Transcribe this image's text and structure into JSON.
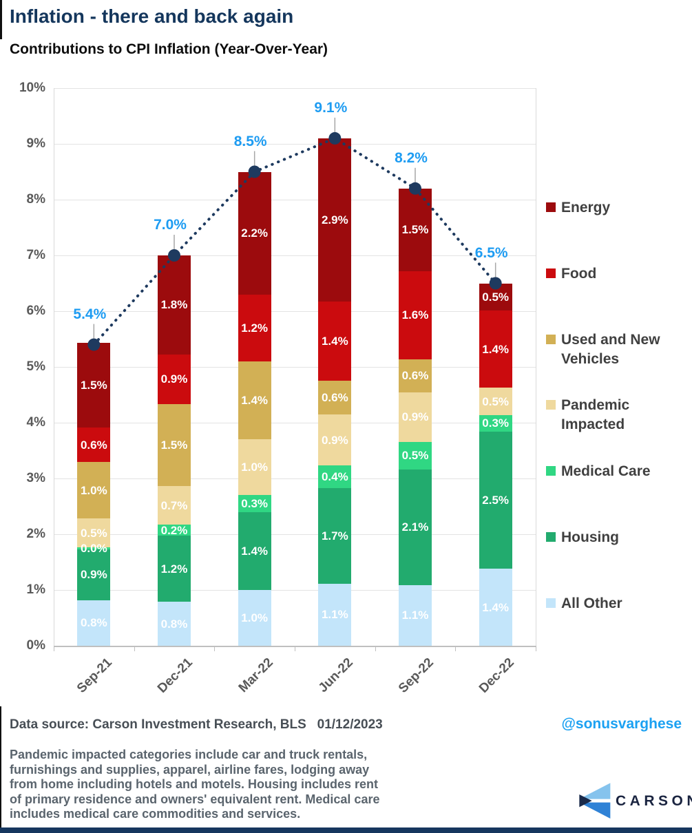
{
  "page": {
    "title": "Inflation - there and back again",
    "subtitle": "Contributions to CPI Inflation (Year-Over-Year)"
  },
  "footer": {
    "data_source": "Data source: Carson Investment Research, BLS   01/12/2023",
    "handle": "@sonusvarghese",
    "footnote_lines": [
      "Pandemic impacted categories include car and truck rentals,",
      "furnishings and supplies, apparel, airline fares, lodging away",
      "from home including hotels and motels. Housing includes rent",
      "of primary residence and owners' equivalent rent. Medical care",
      "includes medical care commodities and services."
    ],
    "logo_text": "CARSON"
  },
  "colors": {
    "title_navy": "#14365C",
    "total_label_blue": "#1E9CF2",
    "dotted_line_navy": "#1E3A5F",
    "axis_text_gray": "#595959",
    "legend_text_gray": "#404040",
    "bottom_bar_navy": "#16365E",
    "logo_light_blue": "#85C3ED",
    "logo_blue": "#2F82D6",
    "logo_dark_navy": "#1A2A4A"
  },
  "chart_data": {
    "type": "bar",
    "stacked": true,
    "title": "Contributions to CPI Inflation (Year-Over-Year)",
    "categories": [
      "Sep-21",
      "Dec-21",
      "Mar-22",
      "Jun-22",
      "Sep-22",
      "Dec-22"
    ],
    "series": [
      {
        "name": "All Other",
        "color": "#C3E5FA",
        "values": [
          0.8,
          0.8,
          1.0,
          1.1,
          1.1,
          1.4
        ],
        "labels": [
          "0.8%",
          "0.8%",
          "1.0%",
          "1.1%",
          "1.1%",
          "1.4%"
        ]
      },
      {
        "name": "Housing",
        "color": "#22AB6E",
        "values": [
          0.9,
          1.2,
          1.4,
          1.7,
          2.1,
          2.5
        ],
        "labels": [
          "0.9%",
          "1.2%",
          "1.4%",
          "1.7%",
          "2.1%",
          "2.5%"
        ]
      },
      {
        "name": "Medical Care",
        "color": "#30D783",
        "values": [
          0.0,
          0.2,
          0.3,
          0.4,
          0.5,
          0.3
        ],
        "labels": [
          "0.0%",
          "0.2%",
          "0.3%",
          "0.4%",
          "0.5%",
          "0.3%"
        ]
      },
      {
        "name": "Pandemic Impacted",
        "color": "#EFD99E",
        "values": [
          0.5,
          0.7,
          1.0,
          0.9,
          0.9,
          0.5
        ],
        "labels": [
          "0.5%",
          "0.7%",
          "1.0%",
          "0.9%",
          "0.9%",
          "0.5%"
        ]
      },
      {
        "name": "Used and New Vehicles",
        "color": "#D2B055",
        "values": [
          1.0,
          1.5,
          1.4,
          0.6,
          0.6,
          0.0
        ],
        "labels": [
          "1.0%",
          "1.5%",
          "1.4%",
          "0.6%",
          "0.6%",
          null
        ]
      },
      {
        "name": "Food",
        "color": "#CB0B0E",
        "values": [
          0.6,
          0.9,
          1.2,
          1.4,
          1.6,
          1.4
        ],
        "labels": [
          "0.6%",
          "0.9%",
          "1.2%",
          "1.4%",
          "1.6%",
          "1.4%"
        ]
      },
      {
        "name": "Energy",
        "color": "#9C0B0D",
        "values": [
          1.5,
          1.8,
          2.2,
          2.9,
          1.5,
          0.5
        ],
        "labels": [
          "1.5%",
          "1.8%",
          "2.2%",
          "2.9%",
          "1.5%",
          "0.5%"
        ]
      }
    ],
    "totals": [
      5.4,
      7.0,
      8.5,
      9.1,
      8.2,
      6.5
    ],
    "total_labels": [
      "5.4%",
      "7.0%",
      "8.5%",
      "9.1%",
      "8.2%",
      "6.5%"
    ],
    "line": {
      "color": "#1E3A5F",
      "style": "dotted",
      "marker": "circle"
    },
    "ylim": [
      0,
      10
    ],
    "yticks": [
      "0%",
      "1%",
      "2%",
      "3%",
      "4%",
      "5%",
      "6%",
      "7%",
      "8%",
      "9%",
      "10%"
    ],
    "grid": true,
    "legend_position": "right",
    "legend": [
      {
        "name": "Energy",
        "lines": [
          "Energy"
        ]
      },
      {
        "name": "Food",
        "lines": [
          "Food"
        ]
      },
      {
        "name": "Used and New Vehicles",
        "lines": [
          "Used and New",
          "Vehicles"
        ]
      },
      {
        "name": "Pandemic Impacted",
        "lines": [
          "Pandemic",
          "Impacted"
        ]
      },
      {
        "name": "Medical Care",
        "lines": [
          "Medical Care"
        ]
      },
      {
        "name": "Housing",
        "lines": [
          "Housing"
        ]
      },
      {
        "name": "All Other",
        "lines": [
          "All Other"
        ]
      }
    ]
  }
}
